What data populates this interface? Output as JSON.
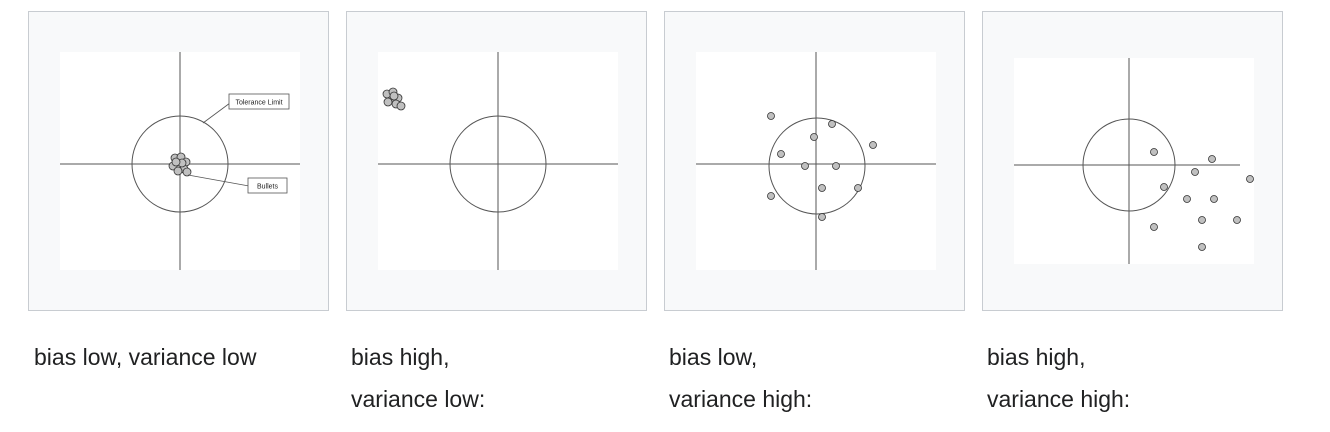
{
  "figures": [
    {
      "caption_lines": [
        "bias low, variance low"
      ],
      "callouts": {
        "tolerance": "Tolerance Limit",
        "bullets": "Bullets"
      }
    },
    {
      "caption_lines": [
        "bias high,",
        "variance low:"
      ]
    },
    {
      "caption_lines": [
        "bias low,",
        "variance high:"
      ]
    },
    {
      "caption_lines": [
        "bias high,",
        "variance high:"
      ]
    }
  ],
  "colors": {
    "panel_bg": "#f8f9fa",
    "panel_border": "#c8ccd1",
    "target_bg": "#ffffff",
    "line": "#555555",
    "bullet_fill": "#c0c0c0",
    "bullet_stroke": "#333333"
  }
}
